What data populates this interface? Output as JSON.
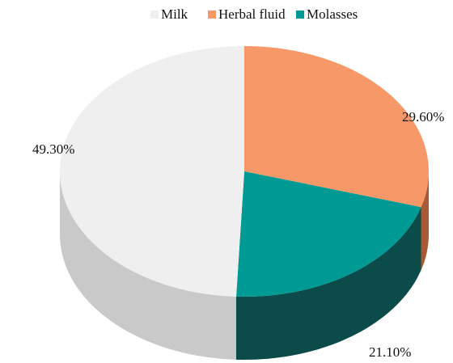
{
  "chart_data": {
    "type": "pie",
    "categories": [
      "Milk",
      "Herbal fluid",
      "Molasses"
    ],
    "values": [
      49.3,
      29.6,
      21.1
    ],
    "value_labels": [
      "49.30%",
      "29.60%",
      "21.10%"
    ],
    "colors": [
      "#efefef",
      "#f79868",
      "#009a94"
    ],
    "side_colors": [
      "#c9c9c9",
      "#a85a34",
      "#0b4c4a"
    ],
    "legend": "top"
  }
}
